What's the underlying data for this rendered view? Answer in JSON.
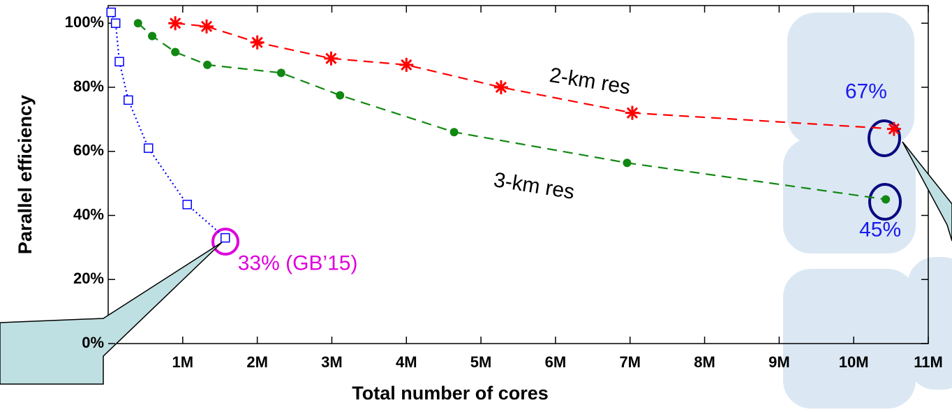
{
  "chart_data": {
    "type": "line",
    "x_label": "Total number of cores",
    "y_label": "Parallel efficiency",
    "xlim": [
      0,
      11
    ],
    "xticks": [
      {
        "value": 1,
        "label": "1M"
      },
      {
        "value": 2,
        "label": "2M"
      },
      {
        "value": 3,
        "label": "3M"
      },
      {
        "value": 4,
        "label": "4M"
      },
      {
        "value": 5,
        "label": "5M"
      },
      {
        "value": 6,
        "label": "6M"
      },
      {
        "value": 7,
        "label": "7M"
      },
      {
        "value": 8,
        "label": "8M"
      },
      {
        "value": 9,
        "label": "9M"
      },
      {
        "value": 10,
        "label": "10M"
      },
      {
        "value": 11,
        "label": "11M"
      }
    ],
    "ylim": [
      0,
      105.5
    ],
    "yticks": [
      {
        "value": 0,
        "label": "0%"
      },
      {
        "value": 20,
        "label": "20%"
      },
      {
        "value": 40,
        "label": "40%"
      },
      {
        "value": 60,
        "label": "60%"
      },
      {
        "value": 80,
        "label": "80%"
      },
      {
        "value": 100,
        "label": "100%"
      }
    ],
    "series": [
      {
        "name": "2-km res",
        "color": "#ff0000",
        "marker": "star",
        "dash": "dashed",
        "x": [
          0.9,
          1.32,
          2.0,
          2.99,
          4.0,
          5.27,
          7.03,
          10.54
        ],
        "values": [
          100,
          99,
          94,
          89,
          87,
          80,
          72,
          67
        ],
        "value_labels": [
          null,
          null,
          null,
          null,
          null,
          null,
          null,
          "67%"
        ]
      },
      {
        "name": "3-km res",
        "color": "#118811",
        "marker": "dot",
        "dash": "dashed",
        "x": [
          0.4,
          0.59,
          0.9,
          1.33,
          2.32,
          3.11,
          4.64,
          6.96,
          10.43
        ],
        "values": [
          100,
          96,
          91,
          87,
          84.5,
          77.5,
          66,
          56.4,
          45
        ],
        "value_labels": [
          null,
          null,
          null,
          null,
          null,
          null,
          null,
          null,
          "45%"
        ]
      },
      {
        "color": "#0000ff",
        "marker": "square",
        "dash": "dotted",
        "x": [
          0.04,
          0.1,
          0.15,
          0.27,
          0.54,
          1.06,
          1.57
        ],
        "values": [
          103.4,
          100,
          88,
          76,
          61,
          43.4,
          33
        ],
        "value_labels": [
          null,
          null,
          null,
          null,
          null,
          null,
          "33% (GB’15)"
        ]
      }
    ]
  }
}
